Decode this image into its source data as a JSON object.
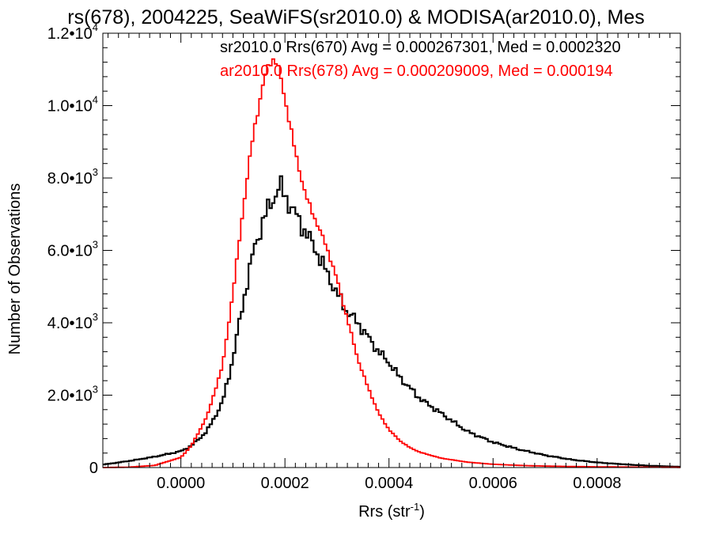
{
  "chart_data": {
    "type": "line",
    "style": "histogram-step",
    "title": "rs(678), 2004225, SeaWiFS(sr2010.0) & MODISA(ar2010.0), Mes",
    "xlabel": "Rrs (str",
    "xlabel_sup": "-1",
    "xlabel_close": ")",
    "ylabel": "Number of Observations",
    "xlim": [
      -0.00015,
      0.00096
    ],
    "ylim": [
      0,
      12000
    ],
    "grid": false,
    "legend_position": "top",
    "x_ticks": [
      {
        "value": 0.0,
        "label": "0.0000"
      },
      {
        "value": 0.0002,
        "label": "0.0002"
      },
      {
        "value": 0.0004,
        "label": "0.0004"
      },
      {
        "value": 0.0006,
        "label": "0.0006"
      },
      {
        "value": 0.0008,
        "label": "0.0008"
      }
    ],
    "y_ticks": [
      {
        "value": 0,
        "mant": "0",
        "exp": ""
      },
      {
        "value": 2000,
        "mant": "2.0•10",
        "exp": "3"
      },
      {
        "value": 4000,
        "mant": "4.0•10",
        "exp": "3"
      },
      {
        "value": 6000,
        "mant": "6.0•10",
        "exp": "3"
      },
      {
        "value": 8000,
        "mant": "8.0•10",
        "exp": "3"
      },
      {
        "value": 10000,
        "mant": "1.0•10",
        "exp": "4"
      },
      {
        "value": 12000,
        "mant": "1.2•10",
        "exp": "4"
      }
    ],
    "bin_width": 5e-06,
    "series": [
      {
        "name": "sr2010.0 Rrs(670) Avg = 0.000267301, Med = 0.0002320",
        "color": "#000000",
        "x": [
          -0.00015,
          -0.0001,
          -5e-05,
          0.0,
          2e-05,
          5e-05,
          8e-05,
          0.0001,
          0.00012,
          0.00014,
          0.00016,
          0.00018,
          0.00019,
          0.0002,
          0.00022,
          0.00024,
          0.00026,
          0.00028,
          0.0003,
          0.00032,
          0.00034,
          0.00036,
          0.00038,
          0.0004,
          0.00042,
          0.00044,
          0.00046,
          0.00048,
          0.0005,
          0.00052,
          0.00055,
          0.0006,
          0.00065,
          0.0007,
          0.00075,
          0.0008,
          0.00085,
          0.0009,
          0.00096
        ],
        "values": [
          80,
          180,
          300,
          450,
          600,
          1000,
          1800,
          3000,
          4600,
          6000,
          6900,
          7500,
          7800,
          7500,
          7000,
          6500,
          6000,
          5400,
          4800,
          4300,
          4000,
          3600,
          3200,
          2900,
          2500,
          2200,
          1900,
          1700,
          1500,
          1300,
          1000,
          700,
          500,
          340,
          220,
          140,
          90,
          50,
          20
        ]
      },
      {
        "name": "ar2010.0 Rrs(678) Avg = 0.000209009, Med = 0.000194",
        "color": "#ff0000",
        "x": [
          -0.00015,
          -0.0001,
          -5e-05,
          0.0,
          2e-05,
          5e-05,
          8e-05,
          0.0001,
          0.00012,
          0.00014,
          0.00016,
          0.00017,
          0.00018,
          0.00019,
          0.0002,
          0.00022,
          0.00024,
          0.00026,
          0.00028,
          0.0003,
          0.00032,
          0.00034,
          0.00036,
          0.00038,
          0.0004,
          0.00042,
          0.00044,
          0.00046,
          0.0005,
          0.00055,
          0.0006,
          0.00065,
          0.0007,
          0.0008,
          0.0009,
          0.00096
        ],
        "values": [
          0,
          10,
          60,
          280,
          600,
          1400,
          2800,
          4800,
          7200,
          9300,
          10700,
          11200,
          11300,
          10900,
          10200,
          8700,
          7500,
          6800,
          6100,
          5200,
          4100,
          3000,
          2200,
          1500,
          1050,
          750,
          550,
          420,
          260,
          150,
          90,
          60,
          40,
          20,
          10,
          5
        ]
      }
    ]
  }
}
